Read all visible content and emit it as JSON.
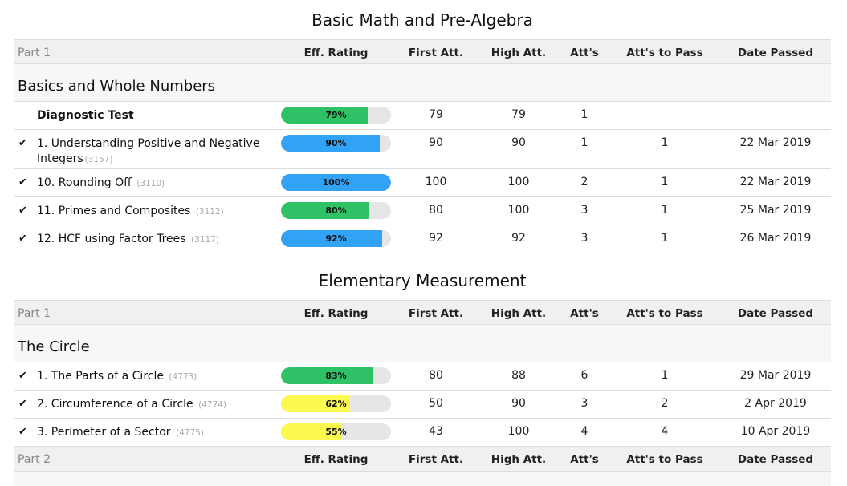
{
  "colors": {
    "green": "#2ec165",
    "blue": "#32a2f7",
    "yellow": "#fcf94f",
    "track": "#e6e6e6",
    "header_bg": "#f0f0f0"
  },
  "sections": [
    {
      "title": "Basic Math and Pre-Algebra",
      "header": {
        "part": "Part 1",
        "eff": "Eff. Rating",
        "first": "First Att.",
        "high": "High Att.",
        "atts": "Att's",
        "pass": "Att's to Pass",
        "date": "Date Passed"
      },
      "unit": "Basics and Whole Numbers",
      "rows": [
        {
          "check": "",
          "name": "Diagnostic Test",
          "code": "",
          "rating": "79%",
          "pct": 79,
          "color": "green",
          "first": "79",
          "high": "79",
          "atts": "1",
          "pass": "",
          "date": ""
        },
        {
          "check": "✔",
          "name": "1. Understanding Positive and Negative Integers",
          "code": "(3157)",
          "rating": "90%",
          "pct": 90,
          "color": "blue",
          "first": "90",
          "high": "90",
          "atts": "1",
          "pass": "1",
          "date": "22 Mar 2019"
        },
        {
          "check": "✔",
          "name": "10. Rounding Off",
          "code": "(3110)",
          "rating": "100%",
          "pct": 100,
          "color": "blue",
          "first": "100",
          "high": "100",
          "atts": "2",
          "pass": "1",
          "date": "22 Mar 2019"
        },
        {
          "check": "✔",
          "name": "11. Primes and Composites",
          "code": "(3112)",
          "rating": "80%",
          "pct": 80,
          "color": "green",
          "first": "80",
          "high": "100",
          "atts": "3",
          "pass": "1",
          "date": "25 Mar 2019"
        },
        {
          "check": "✔",
          "name": "12. HCF using Factor Trees",
          "code": "(3117)",
          "rating": "92%",
          "pct": 92,
          "color": "blue",
          "first": "92",
          "high": "92",
          "atts": "3",
          "pass": "1",
          "date": "26 Mar 2019"
        }
      ]
    },
    {
      "title": "Elementary Measurement",
      "header": {
        "part": "Part 1",
        "eff": "Eff. Rating",
        "first": "First Att.",
        "high": "High Att.",
        "atts": "Att's",
        "pass": "Att's to Pass",
        "date": "Date Passed"
      },
      "unit": "The Circle",
      "rows": [
        {
          "check": "✔",
          "name": "1. The Parts of a Circle",
          "code": "(4773)",
          "rating": "83%",
          "pct": 83,
          "color": "green",
          "first": "80",
          "high": "88",
          "atts": "6",
          "pass": "1",
          "date": "29 Mar 2019"
        },
        {
          "check": "✔",
          "name": "2. Circumference of a Circle",
          "code": "(4774)",
          "rating": "62%",
          "pct": 62,
          "color": "yellow",
          "first": "50",
          "high": "90",
          "atts": "3",
          "pass": "2",
          "date": "2 Apr 2019"
        },
        {
          "check": "✔",
          "name": "3. Perimeter of a Sector",
          "code": "(4775)",
          "rating": "55%",
          "pct": 55,
          "color": "yellow",
          "first": "43",
          "high": "100",
          "atts": "4",
          "pass": "4",
          "date": "10 Apr 2019"
        }
      ],
      "header2": {
        "part": "Part 2",
        "eff": "Eff. Rating",
        "first": "First Att.",
        "high": "High Att.",
        "atts": "Att's",
        "pass": "Att's to Pass",
        "date": "Date Passed"
      }
    }
  ]
}
